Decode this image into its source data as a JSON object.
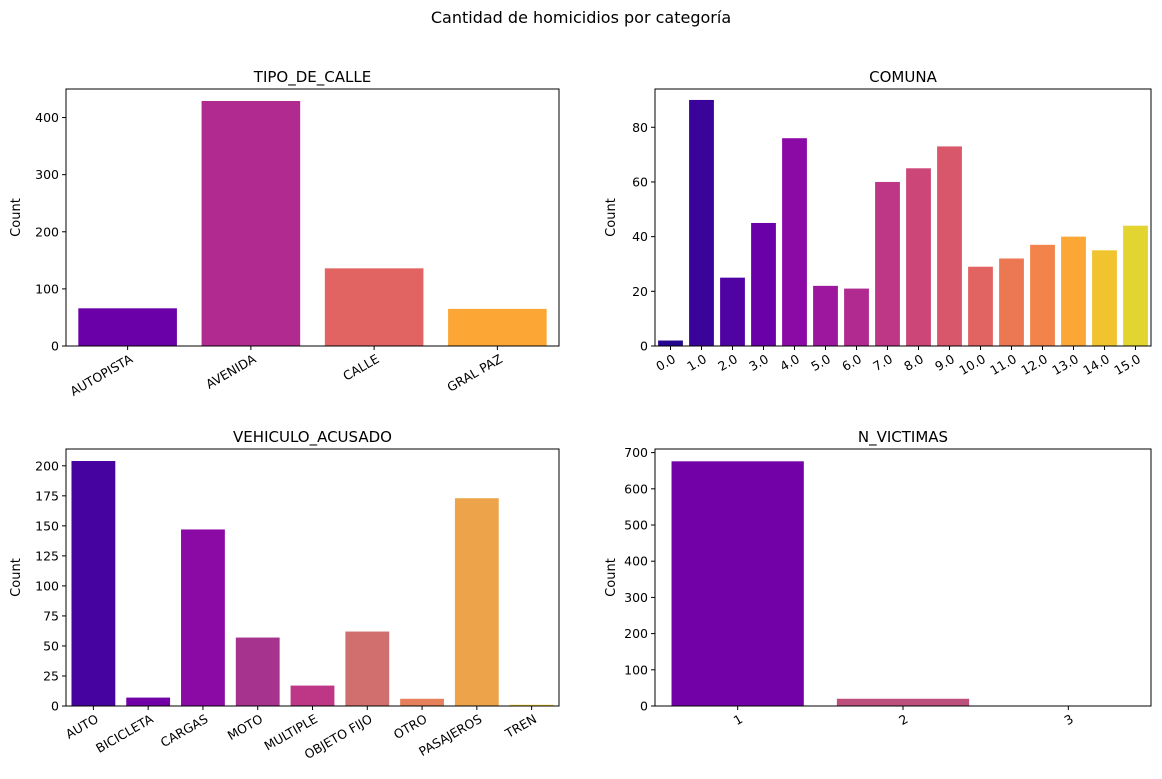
{
  "figure": {
    "suptitle": "Cantidad de homicidios por categoría"
  },
  "chart_data": [
    {
      "type": "bar",
      "title": "TIPO_DE_CALLE",
      "xlabel": "",
      "ylabel": "Count",
      "categories": [
        "AUTOPISTA",
        "AVENIDA",
        "CALLE",
        "GRAL PAZ"
      ],
      "values": [
        66,
        429,
        136,
        65
      ],
      "ylim": [
        0,
        450
      ],
      "yticks": [
        0,
        100,
        200,
        300,
        400
      ],
      "colors": [
        "#6a00a8",
        "#b12a90",
        "#e16462",
        "#fca636"
      ],
      "tick_rotation": 30,
      "grid": false
    },
    {
      "type": "bar",
      "title": "COMUNA",
      "xlabel": "",
      "ylabel": "Count",
      "categories": [
        "0.0",
        "1.0",
        "2.0",
        "3.0",
        "4.0",
        "5.0",
        "6.0",
        "7.0",
        "8.0",
        "9.0",
        "10.0",
        "11.0",
        "12.0",
        "13.0",
        "14.0",
        "15.0"
      ],
      "values": [
        2,
        90,
        25,
        45,
        76,
        22,
        21,
        60,
        65,
        73,
        29,
        32,
        37,
        40,
        35,
        44
      ],
      "ylim": [
        0,
        94
      ],
      "yticks": [
        0,
        20,
        40,
        60,
        80
      ],
      "colors": [
        "#240691",
        "#3a049a",
        "#5002a2",
        "#6a00a8",
        "#8b0aa5",
        "#9c179e",
        "#b12a90",
        "#bd3786",
        "#cc4778",
        "#d8576b",
        "#e16462",
        "#ec7853",
        "#f2844b",
        "#fca636",
        "#f0c32f",
        "#e2d531"
      ],
      "tick_rotation": 30,
      "grid": false
    },
    {
      "type": "bar",
      "title": "VEHICULO_ACUSADO",
      "xlabel": "",
      "ylabel": "Count",
      "categories": [
        "AUTO",
        "BICICLETA",
        "CARGAS",
        "MOTO",
        "MULTIPLE",
        "OBJETO FIJO",
        "OTRO",
        "PASAJEROS",
        "TREN"
      ],
      "values": [
        204,
        7,
        147,
        57,
        17,
        62,
        6,
        173,
        1
      ],
      "ylim": [
        0,
        214
      ],
      "yticks": [
        0,
        25,
        50,
        75,
        100,
        125,
        150,
        175,
        200
      ],
      "colors": [
        "#46039f",
        "#7201a8",
        "#8b0aa5",
        "#a6338e",
        "#bd3786",
        "#d16f6e",
        "#e6805a",
        "#eca34a",
        "#fcce25"
      ],
      "tick_rotation": 30,
      "grid": false
    },
    {
      "type": "bar",
      "title": "N_VICTIMAS",
      "xlabel": "",
      "ylabel": "Count",
      "categories": [
        "1",
        "2",
        "3"
      ],
      "values": [
        676,
        20,
        1
      ],
      "ylim": [
        0,
        710
      ],
      "yticks": [
        0,
        100,
        200,
        300,
        400,
        500,
        600,
        700
      ],
      "colors": [
        "#7201a8",
        "#bd4f7c",
        "#fca636"
      ],
      "tick_rotation": 30,
      "grid": false
    }
  ]
}
